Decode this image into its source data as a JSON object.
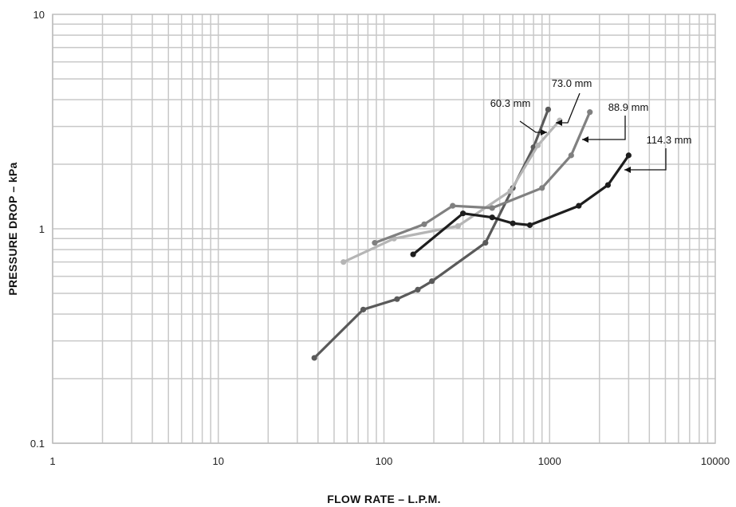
{
  "chart_data": {
    "type": "line",
    "xlabel": "FLOW RATE – L.P.M.",
    "ylabel": "PRESSURE DROP – kPa",
    "xscale": "log",
    "yscale": "log",
    "xlim": [
      1,
      10000
    ],
    "ylim": [
      0.1,
      10
    ],
    "grid": true,
    "x_tick_labels": [
      "1",
      "10",
      "100",
      "1000",
      "10000"
    ],
    "y_tick_labels": [
      "0.1",
      "1",
      "10"
    ],
    "series": [
      {
        "name": "60.3 mm",
        "color": "#5a5a5a",
        "points": [
          [
            38,
            0.25
          ],
          [
            75,
            0.42
          ],
          [
            120,
            0.47
          ],
          [
            160,
            0.52
          ],
          [
            195,
            0.57
          ],
          [
            410,
            0.86
          ],
          [
            600,
            1.55
          ],
          [
            800,
            2.4
          ],
          [
            980,
            3.6
          ]
        ]
      },
      {
        "name": "73.0 mm",
        "color": "#b5b5b5",
        "points": [
          [
            57,
            0.7
          ],
          [
            115,
            0.9
          ],
          [
            280,
            1.03
          ],
          [
            580,
            1.5
          ],
          [
            850,
            2.45
          ],
          [
            1150,
            3.2
          ]
        ]
      },
      {
        "name": "88.9 mm",
        "color": "#808080",
        "points": [
          [
            88,
            0.86
          ],
          [
            175,
            1.05
          ],
          [
            260,
            1.28
          ],
          [
            450,
            1.25
          ],
          [
            900,
            1.55
          ],
          [
            1350,
            2.2
          ],
          [
            1750,
            3.5
          ]
        ]
      },
      {
        "name": "114.3 mm",
        "color": "#1e1e1e",
        "points": [
          [
            150,
            0.76
          ],
          [
            300,
            1.18
          ],
          [
            450,
            1.13
          ],
          [
            600,
            1.06
          ],
          [
            760,
            1.04
          ],
          [
            1500,
            1.28
          ],
          [
            2250,
            1.6
          ],
          [
            3000,
            2.2
          ]
        ]
      }
    ],
    "callouts": [
      "60.3 mm",
      "73.0 mm",
      "88.9 mm",
      "114.3 mm"
    ]
  }
}
